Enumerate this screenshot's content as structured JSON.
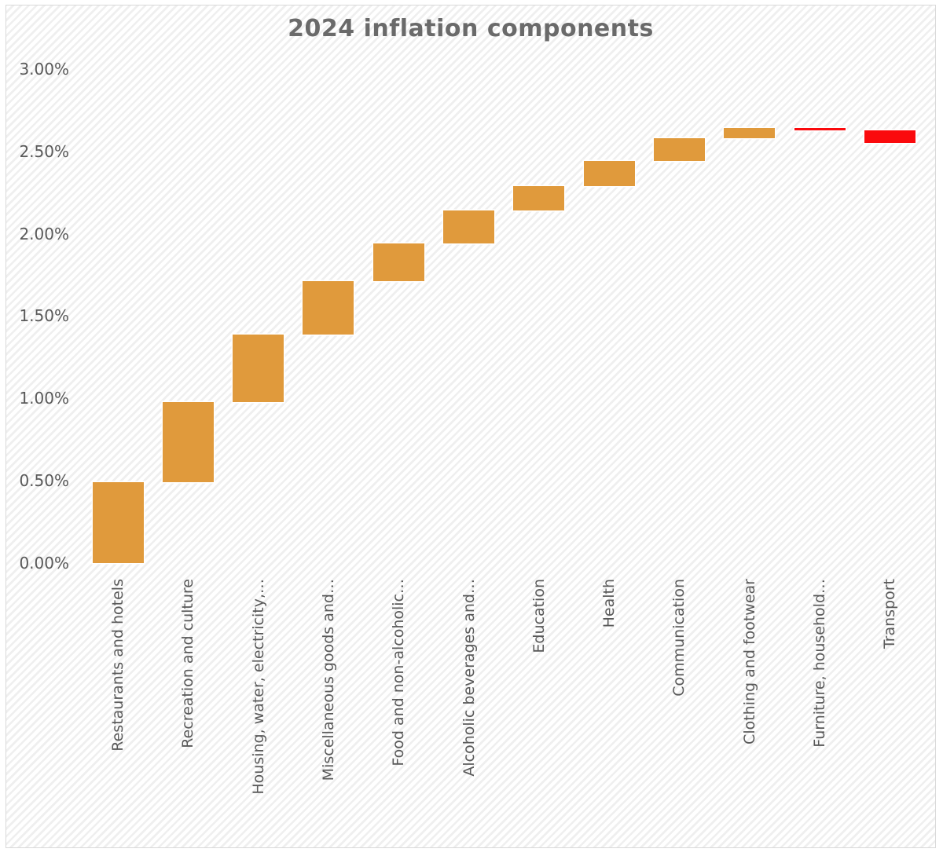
{
  "page": {
    "background_color": "#FFFFFF",
    "frame_border_color": "#D9D9D9",
    "hatch_stripe_color": "#EFEFEF"
  },
  "chart_data": {
    "type": "bar",
    "subtype": "waterfall",
    "title": "2024 inflation components",
    "title_color": "#6A6A6A",
    "axis_label_color": "#595959",
    "units": "percentage points",
    "categories": [
      "Restaurants and hotels",
      "Recreation and culture",
      "Housing, water, electricity,…",
      "Miscellaneous goods and…",
      "Food and non-alcoholic…",
      "Alcoholic beverages and…",
      "Education",
      "Health",
      "Communication",
      "Clothing and footwear",
      "Furniture, household…",
      "Transport"
    ],
    "values": [
      0.49,
      0.49,
      0.41,
      0.32,
      0.23,
      0.2,
      0.15,
      0.15,
      0.14,
      0.06,
      -0.01,
      -0.08
    ],
    "cumulative": [
      0.49,
      0.98,
      1.39,
      1.71,
      1.94,
      2.14,
      2.29,
      2.44,
      2.58,
      2.64,
      2.63,
      2.55
    ],
    "ylim": [
      0,
      3.0
    ],
    "yticks": [
      {
        "value": 0.0,
        "label": "0.00%"
      },
      {
        "value": 0.5,
        "label": "0.50%"
      },
      {
        "value": 1.0,
        "label": "1.00%"
      },
      {
        "value": 1.5,
        "label": "1.50%"
      },
      {
        "value": 2.0,
        "label": "2.00%"
      },
      {
        "value": 2.5,
        "label": "2.50%"
      },
      {
        "value": 3.0,
        "label": "3.00%"
      }
    ],
    "colors": {
      "increase": "#E09A3C",
      "decrease": "#FA0A0D"
    },
    "grid": false,
    "legend": "none",
    "xlabel": "",
    "ylabel": ""
  }
}
